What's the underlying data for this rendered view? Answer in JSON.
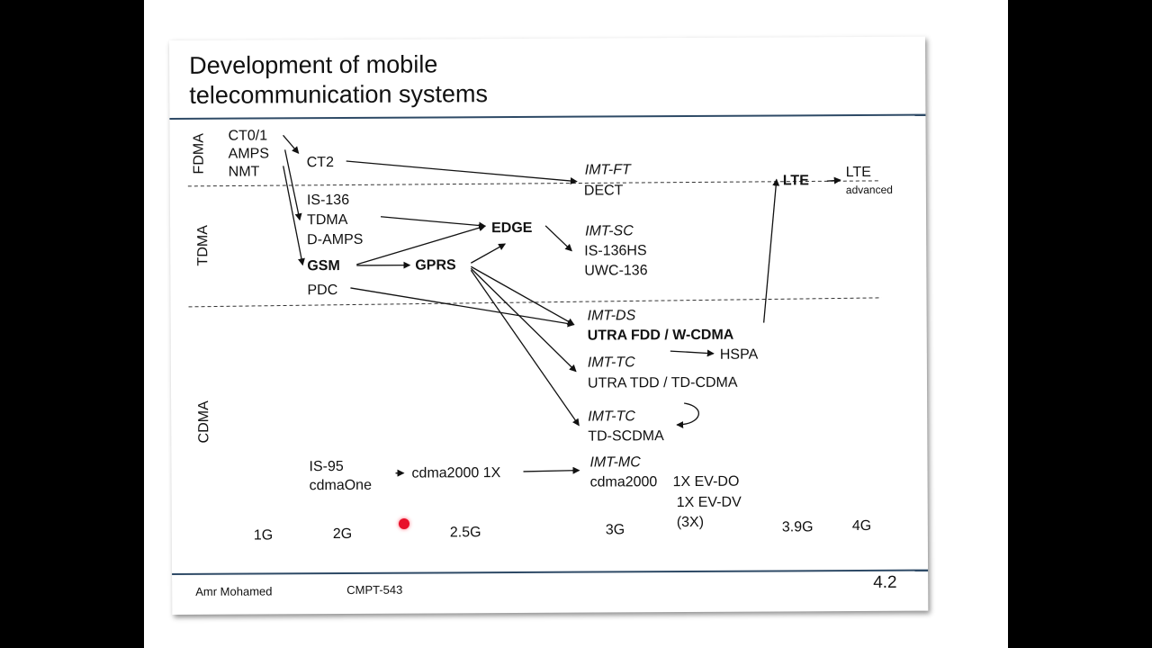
{
  "slide": {
    "title_line1": "Development of mobile",
    "title_line2": "telecommunication systems",
    "footer_author": "Amr Mohamed",
    "footer_course": "CMPT-543",
    "page_number": "4.2"
  },
  "diagram": {
    "bands": {
      "fdma": "FDMA",
      "tdma": "TDMA",
      "cdma": "CDMA"
    },
    "nodes": {
      "ct01": "CT0/1",
      "amps": "AMPS",
      "nmt": "NMT",
      "ct2": "CT2",
      "is136": "IS-136",
      "tdma": "TDMA",
      "damps": "D-AMPS",
      "gsm": "GSM",
      "pdc": "PDC",
      "gprs": "GPRS",
      "edge": "EDGE",
      "imtft": "IMT-FT",
      "dect": "DECT",
      "imtsc": "IMT-SC",
      "is136hs": "IS-136HS",
      "uwc136": "UWC-136",
      "imtds": "IMT-DS",
      "utrafdd": "UTRA FDD / W-CDMA",
      "hspa": "HSPA",
      "imttc1": "IMT-TC",
      "utratdd": "UTRA TDD / TD-CDMA",
      "imttc2": "IMT-TC",
      "tdscdma": "TD-SCDMA",
      "is95": "IS-95",
      "cdmaone": "cdmaOne",
      "cdma2000_1x": "cdma2000 1X",
      "imtmc": "IMT-MC",
      "cdma2000": "cdma2000",
      "evdo": "1X EV-DO",
      "evdv": "1X EV-DV",
      "x3": "(3X)",
      "lte": "LTE",
      "lte_adv_1": "LTE",
      "lte_adv_2": "advanced"
    },
    "generations": [
      "1G",
      "2G",
      "2.5G",
      "3G",
      "3.9G",
      "4G"
    ]
  }
}
